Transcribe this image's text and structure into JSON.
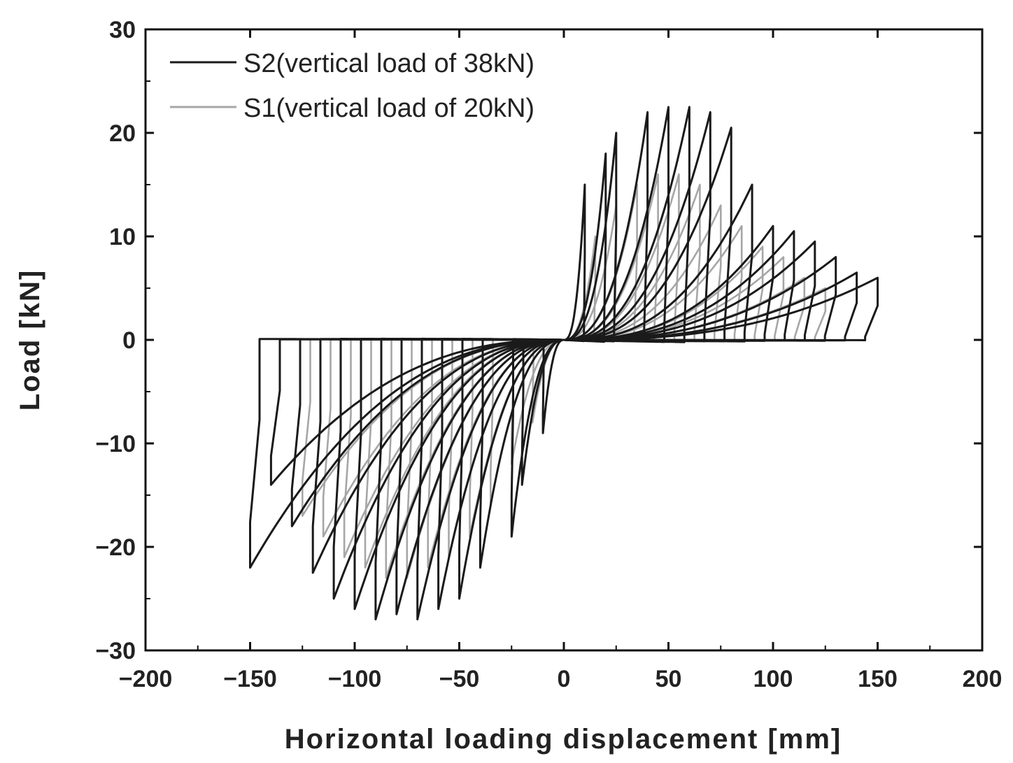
{
  "chart_data": {
    "type": "line",
    "title": "",
    "xlabel": "Horizontal loading displacement [mm]",
    "ylabel": "Load [kN]",
    "xlim": [
      -200,
      200
    ],
    "ylim": [
      -30,
      30
    ],
    "xticks": [
      -200,
      -150,
      -100,
      -50,
      0,
      50,
      100,
      150,
      200
    ],
    "yticks": [
      -30,
      -20,
      -10,
      0,
      10,
      20,
      30
    ],
    "xtick_labels": [
      "−200",
      "−150",
      "−100",
      "−50",
      "0",
      "50",
      "100",
      "150",
      "200"
    ],
    "ytick_labels": [
      "−30",
      "−20",
      "−10",
      "0",
      "10",
      "20",
      "30"
    ],
    "grid": false,
    "legend_position": "top-left",
    "series": [
      {
        "name": "S2(vertical load of 38kN)",
        "color": "#1a1a1a",
        "peaks": [
          {
            "pos": 15,
            "neg": -9
          },
          {
            "pos": 18,
            "neg": -14
          },
          {
            "pos": 20,
            "neg": -19
          },
          {
            "pos": 22,
            "neg": -22
          },
          {
            "pos": 22.5,
            "neg": -25
          },
          {
            "pos": 22.5,
            "neg": -26
          },
          {
            "pos": 22,
            "neg": -27
          },
          {
            "pos": 20.5,
            "neg": -26.5
          },
          {
            "pos": 15,
            "neg": -27
          },
          {
            "pos": 11,
            "neg": -26
          },
          {
            "pos": 10.5,
            "neg": -25
          },
          {
            "pos": 9.5,
            "neg": -22.5
          },
          {
            "pos": 8,
            "neg": -18
          },
          {
            "pos": 6.5,
            "neg": -14
          },
          {
            "pos": 6,
            "neg": -22
          }
        ],
        "amplitudes": [
          10,
          20,
          25,
          40,
          50,
          60,
          70,
          80,
          90,
          100,
          110,
          120,
          130,
          140,
          150
        ]
      },
      {
        "name": "S1(vertical load of 20kN)",
        "color": "#a6a6a6",
        "peaks": [
          {
            "pos": 10,
            "neg": -8
          },
          {
            "pos": 13,
            "neg": -12
          },
          {
            "pos": 15,
            "neg": -16
          },
          {
            "pos": 16,
            "neg": -19
          },
          {
            "pos": 16,
            "neg": -21
          },
          {
            "pos": 15,
            "neg": -22
          },
          {
            "pos": 13,
            "neg": -23
          },
          {
            "pos": 11,
            "neg": -23
          },
          {
            "pos": 9,
            "neg": -22
          },
          {
            "pos": 8,
            "neg": -21
          },
          {
            "pos": 6,
            "neg": -19
          },
          {
            "pos": 5,
            "neg": -17
          }
        ],
        "amplitudes": [
          15,
          25,
          35,
          45,
          55,
          65,
          75,
          85,
          95,
          105,
          115,
          125
        ]
      }
    ]
  }
}
